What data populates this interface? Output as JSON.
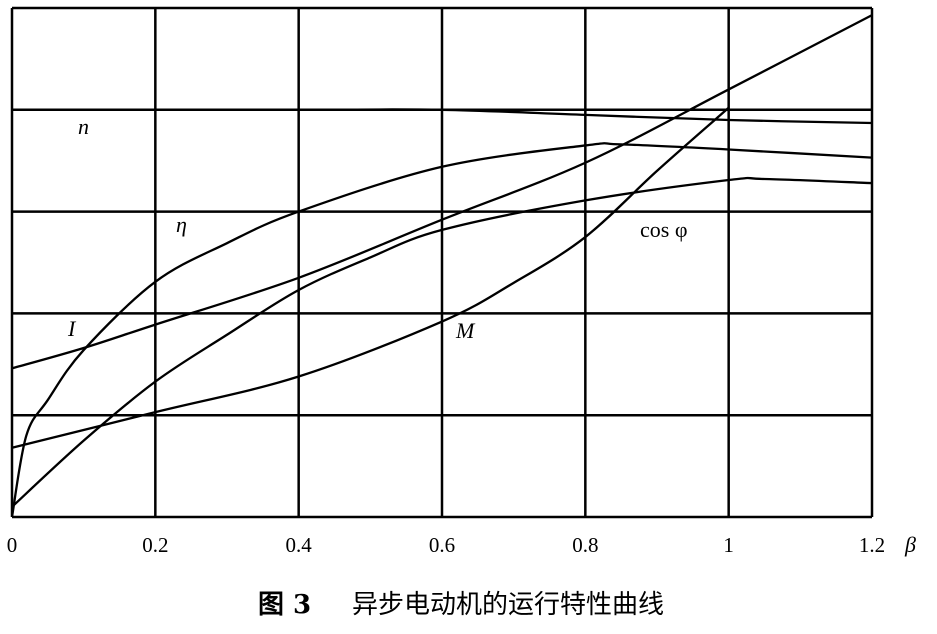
{
  "chart_data": {
    "type": "line",
    "caption_number": "图 3",
    "caption_text": "异步电动机的运行特性曲线",
    "xlabel": "β",
    "xlim": [
      0,
      1.2
    ],
    "ylim": [
      0,
      5
    ],
    "x_ticks": [
      "0",
      "0.2",
      "0.4",
      "0.6",
      "0.8",
      "1",
      "1.2"
    ],
    "grid": true,
    "series": [
      {
        "name": "n",
        "x": [
          0,
          0.2,
          0.4,
          0.6,
          0.8,
          1.0,
          1.2
        ],
        "y": [
          4.0,
          4.0,
          4.0,
          4.0,
          3.95,
          3.9,
          3.87
        ]
      },
      {
        "name": "η",
        "x": [
          0,
          0.02,
          0.05,
          0.1,
          0.2,
          0.3,
          0.4,
          0.6,
          0.8,
          0.85,
          1.0,
          1.2
        ],
        "y": [
          0,
          0.8,
          1.15,
          1.64,
          2.31,
          2.69,
          3.0,
          3.44,
          3.65,
          3.66,
          3.61,
          3.53
        ]
      },
      {
        "name": "I",
        "x": [
          0,
          0.1,
          0.2,
          0.4,
          0.6,
          0.8,
          1.0,
          1.2
        ],
        "y": [
          1.46,
          1.66,
          1.89,
          2.35,
          2.92,
          3.48,
          4.2,
          4.93
        ]
      },
      {
        "name": "cos φ",
        "x": [
          0,
          0.1,
          0.2,
          0.3,
          0.4,
          0.5,
          0.6,
          0.8,
          1.0,
          1.05,
          1.2
        ],
        "y": [
          0.1,
          0.75,
          1.33,
          1.79,
          2.23,
          2.55,
          2.82,
          3.11,
          3.31,
          3.32,
          3.28
        ]
      },
      {
        "name": "M",
        "x": [
          0,
          0.2,
          0.4,
          0.6,
          0.7,
          0.8,
          0.9,
          1.0
        ],
        "y": [
          0.68,
          1.03,
          1.38,
          1.92,
          2.3,
          2.75,
          3.4,
          4.02
        ]
      }
    ]
  }
}
